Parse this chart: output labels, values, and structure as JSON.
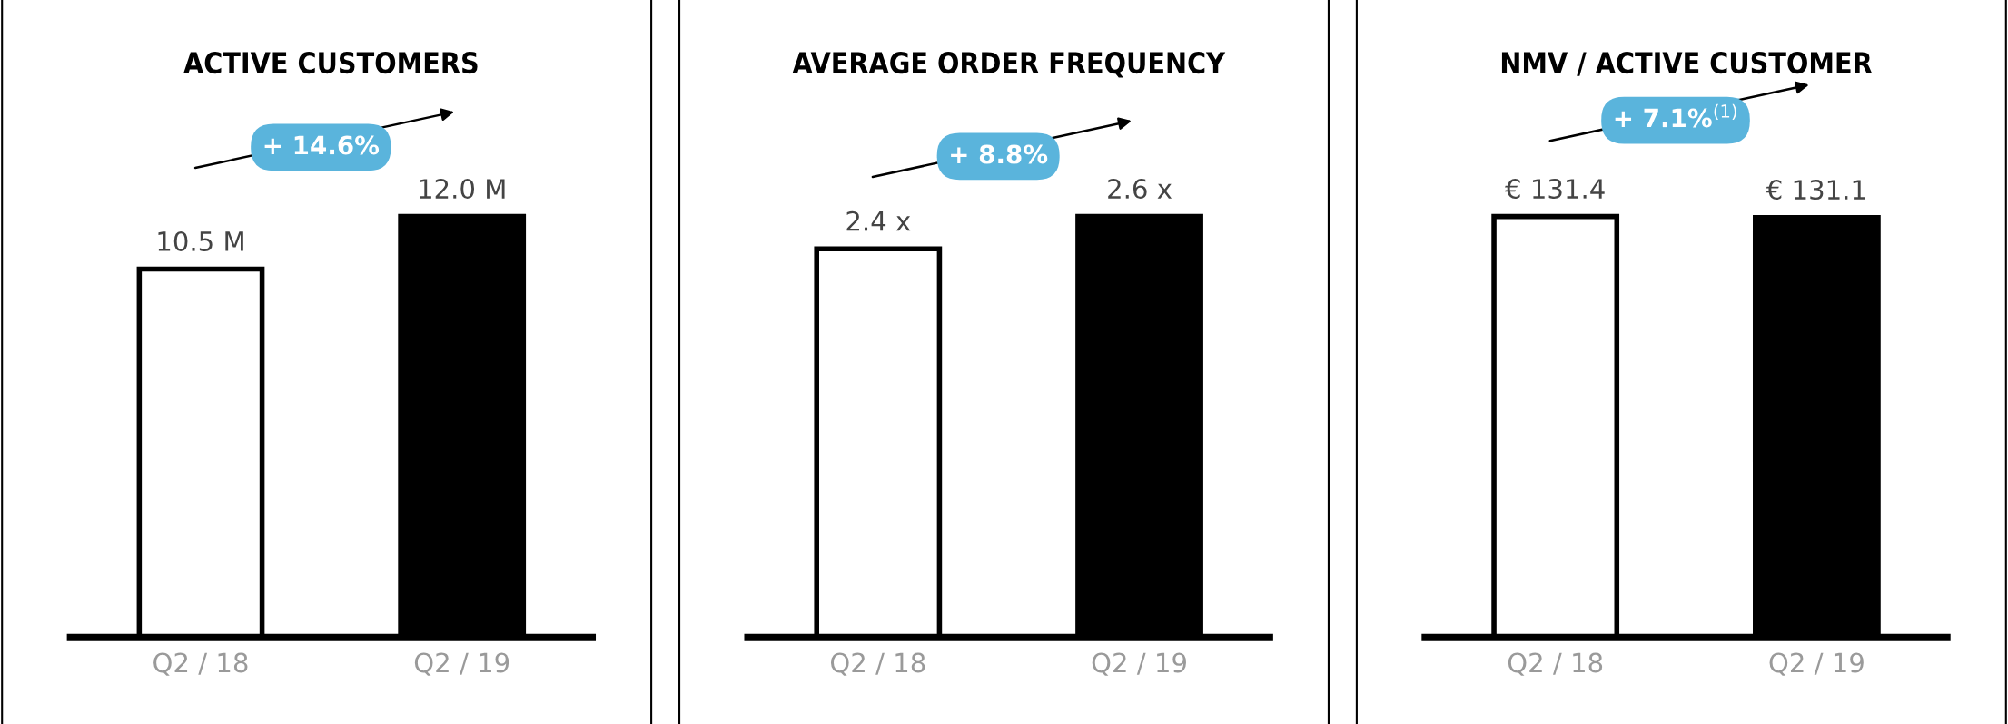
{
  "chart_data": [
    {
      "type": "bar",
      "title": "ACTIVE CUSTOMERS",
      "categories": [
        "Q2 / 18",
        "Q2 / 19"
      ],
      "values": [
        10.5,
        12.0
      ],
      "value_labels": [
        "10.5 M",
        "12.0 M"
      ],
      "colors": [
        "#ffffff",
        "#000000"
      ],
      "annotations": [
        "+ 14.6%"
      ]
    },
    {
      "type": "bar",
      "title": "AVERAGE ORDER FREQUENCY",
      "categories": [
        "Q2 / 18",
        "Q2 / 19"
      ],
      "values": [
        2.4,
        2.6
      ],
      "value_labels": [
        "2.4 x",
        "2.6 x"
      ],
      "colors": [
        "#ffffff",
        "#000000"
      ],
      "annotations": [
        "+ 8.8%"
      ]
    },
    {
      "type": "bar",
      "title": "NMV / ACTIVE CUSTOMER",
      "categories": [
        "Q2 / 18",
        "Q2 / 19"
      ],
      "values": [
        131.4,
        131.1
      ],
      "value_labels": [
        "€ 131.4",
        "€ 131.1"
      ],
      "colors": [
        "#ffffff",
        "#000000"
      ],
      "annotations": [
        "+ 7.1%$^{(1)}$"
      ]
    }
  ]
}
